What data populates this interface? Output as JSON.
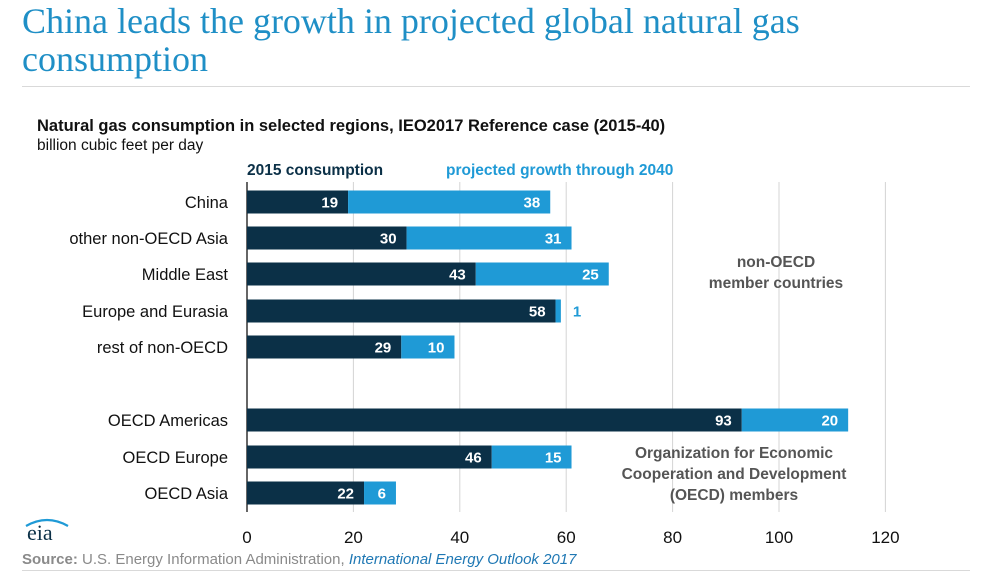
{
  "slide": {
    "title": "China leads the growth in projected global natural gas consumption"
  },
  "source": {
    "label": "Source:",
    "text": " U.S. Energy Information Administration, ",
    "link": "International Energy Outlook 2017"
  },
  "logo": {
    "text": "eia",
    "icon": "eia-logo"
  },
  "colors": {
    "base": "#0b3047",
    "growth": "#1f9ad6",
    "grid": "#d4d4d4",
    "title": "#1f8fc6"
  },
  "chart_data": {
    "type": "bar",
    "orientation": "horizontal",
    "stacked": true,
    "title": "Natural gas consumption in selected regions, IEO2017 Reference case (2015-40)",
    "subtitle": "billion cubic feet per day",
    "xlim": [
      0,
      120
    ],
    "xticks": [
      "0",
      "20",
      "40",
      "60",
      "80",
      "100",
      "120"
    ],
    "grid": true,
    "legend_position": "top",
    "categories": [
      "China",
      "other non-OECD Asia",
      "Middle East",
      "Europe and Eurasia",
      "rest of non-OECD",
      "OECD Americas",
      "OECD Europe",
      "OECD Asia"
    ],
    "series": [
      {
        "name": "2015 consumption",
        "values": [
          19,
          30,
          43,
          58,
          29,
          93,
          46,
          22
        ]
      },
      {
        "name": "projected growth through 2040",
        "values": [
          38,
          31,
          25,
          1,
          10,
          20,
          15,
          6
        ]
      }
    ],
    "annotations": [
      {
        "lines": [
          "non-OECD",
          "member countries"
        ]
      },
      {
        "lines": [
          "Organization for Economic",
          "Cooperation and Development",
          "(OECD) members"
        ]
      }
    ]
  }
}
